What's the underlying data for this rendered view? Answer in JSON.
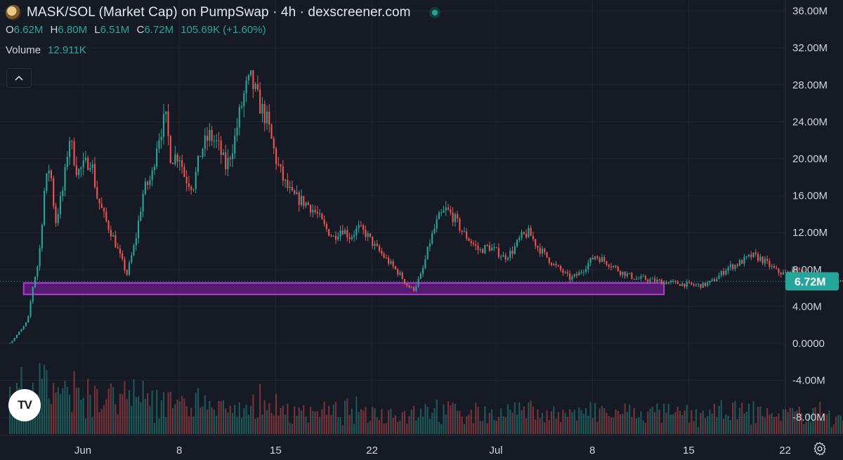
{
  "header": {
    "title": "MASK/SOL (Market Cap) on PumpSwap · 4h · dexscreener.com",
    "ohlc": [
      {
        "key": "O",
        "value": "6.62M"
      },
      {
        "key": "H",
        "value": "6.80M"
      },
      {
        "key": "L",
        "value": "6.51M"
      },
      {
        "key": "C",
        "value": "6.72M"
      }
    ],
    "change": "105.69K (+1.60%)",
    "volume_label": "Volume",
    "volume_value": "12.911K",
    "logo_icon": "token-logo-icon",
    "status_icon": "market-open-dot-icon"
  },
  "colors": {
    "background": "#161a25",
    "grid": "#232734",
    "up": "#26a69a",
    "down": "#ef5350",
    "zone_fill": "#6b1c8a",
    "zone_stroke": "#b43cd6",
    "price_tag": "#26a69a"
  },
  "logo_text": "TV",
  "chart_data": {
    "type": "candlestick",
    "y_ticks": [
      "36.00M",
      "32.00M",
      "28.00M",
      "24.00M",
      "20.00M",
      "16.00M",
      "12.00M",
      "8.00M",
      "4.00M",
      "0.0000",
      "-4.00M",
      "-8.00M"
    ],
    "x_ticks": [
      "Jun",
      "8",
      "15",
      "22",
      "Jul",
      "8",
      "15",
      "22"
    ],
    "ylim_millions": [
      -10,
      37
    ],
    "y_unit": "M",
    "current_price_label": "6.72M",
    "current_price_millions": 6.72,
    "support_zone_millions": [
      5.3,
      6.55
    ],
    "support_zone_range_days": [
      -4.3,
      42.2
    ],
    "grid": true,
    "anchors_days_since_jun1_vs_close_millions": [
      [
        -5.3,
        0.05
      ],
      [
        -4.4,
        1.6
      ],
      [
        -4.0,
        2.5
      ],
      [
        -3.6,
        6.5
      ],
      [
        -3.2,
        9.0
      ],
      [
        -2.8,
        16.5
      ],
      [
        -2.4,
        19.5
      ],
      [
        -2.0,
        13.0
      ],
      [
        -1.4,
        17.0
      ],
      [
        -1.0,
        22.5
      ],
      [
        -0.4,
        18.5
      ],
      [
        0.6,
        20.0
      ],
      [
        1.0,
        16.0
      ],
      [
        1.6,
        13.5
      ],
      [
        2.2,
        11.5
      ],
      [
        2.8,
        9.0
      ],
      [
        3.2,
        7.5
      ],
      [
        3.8,
        11.0
      ],
      [
        4.4,
        16.5
      ],
      [
        5.0,
        18.0
      ],
      [
        5.4,
        22.0
      ],
      [
        6.0,
        24.5
      ],
      [
        6.4,
        20.0
      ],
      [
        7.0,
        20.5
      ],
      [
        7.4,
        18.0
      ],
      [
        8.0,
        17.0
      ],
      [
        8.6,
        21.0
      ],
      [
        9.2,
        22.5
      ],
      [
        9.8,
        21.5
      ],
      [
        10.4,
        19.0
      ],
      [
        11.0,
        22.0
      ],
      [
        11.4,
        25.0
      ],
      [
        11.8,
        27.5
      ],
      [
        12.2,
        28.5
      ],
      [
        12.8,
        26.0
      ],
      [
        13.4,
        24.0
      ],
      [
        14.0,
        20.0
      ],
      [
        14.6,
        17.5
      ],
      [
        15.2,
        16.0
      ],
      [
        15.8,
        15.5
      ],
      [
        16.4,
        15.0
      ],
      [
        17.0,
        14.0
      ],
      [
        17.6,
        12.5
      ],
      [
        18.2,
        11.5
      ],
      [
        18.8,
        12.5
      ],
      [
        19.4,
        11.5
      ],
      [
        20.0,
        12.5
      ],
      [
        20.6,
        11.8
      ],
      [
        21.2,
        10.5
      ],
      [
        21.8,
        9.5
      ],
      [
        22.4,
        8.5
      ],
      [
        23.0,
        7.5
      ],
      [
        23.6,
        6.2
      ],
      [
        24.0,
        5.8
      ],
      [
        24.6,
        7.5
      ],
      [
        25.2,
        11.0
      ],
      [
        25.8,
        13.5
      ],
      [
        26.4,
        14.5
      ],
      [
        27.0,
        13.5
      ],
      [
        27.6,
        12.0
      ],
      [
        28.2,
        11.0
      ],
      [
        28.8,
        10.0
      ],
      [
        29.4,
        10.5
      ],
      [
        30.0,
        10.0
      ],
      [
        30.6,
        9.3
      ],
      [
        31.2,
        10.0
      ],
      [
        31.8,
        11.5
      ],
      [
        32.4,
        12.0
      ],
      [
        33.0,
        10.5
      ],
      [
        33.6,
        9.5
      ],
      [
        34.2,
        8.5
      ],
      [
        34.8,
        7.8
      ],
      [
        35.4,
        7.0
      ],
      [
        36.0,
        7.5
      ],
      [
        36.6,
        8.5
      ],
      [
        37.2,
        9.5
      ],
      [
        37.8,
        9.0
      ],
      [
        38.4,
        8.5
      ],
      [
        39.0,
        7.8
      ],
      [
        39.6,
        7.4
      ],
      [
        40.2,
        7.0
      ],
      [
        40.8,
        7.0
      ],
      [
        41.4,
        6.8
      ],
      [
        42.0,
        6.7
      ],
      [
        42.6,
        6.6
      ],
      [
        43.2,
        6.5
      ],
      [
        43.8,
        6.4
      ],
      [
        44.4,
        6.3
      ],
      [
        45.0,
        6.3
      ],
      [
        45.6,
        6.6
      ],
      [
        46.2,
        7.3
      ],
      [
        46.8,
        8.2
      ],
      [
        47.4,
        8.5
      ],
      [
        48.0,
        9.0
      ],
      [
        48.6,
        9.5
      ],
      [
        49.2,
        9.2
      ],
      [
        49.8,
        8.5
      ],
      [
        50.4,
        7.8
      ],
      [
        51.0,
        7.5
      ],
      [
        51.6,
        7.8
      ],
      [
        52.2,
        7.9
      ],
      [
        52.8,
        7.3
      ],
      [
        53.4,
        7.0
      ],
      [
        54.0,
        6.6
      ],
      [
        54.6,
        6.8
      ],
      [
        55.2,
        6.72
      ]
    ]
  }
}
